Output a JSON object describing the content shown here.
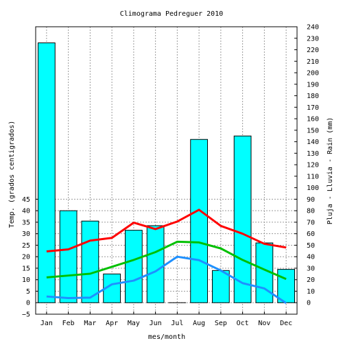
{
  "chart_data": {
    "type": "bar",
    "title": "Climograma Pedreguer 2010",
    "xlabel": "mes/month",
    "ylabel_left": "Temp. (grados centigrados)",
    "ylabel_right": "Pluja - Lluvia - Rain (mm)",
    "categories": [
      "Jan",
      "Feb",
      "Mar",
      "Apr",
      "May",
      "Jun",
      "Jul",
      "Aug",
      "Sep",
      "Oct",
      "Nov",
      "Dec"
    ],
    "left_axis": {
      "ticks": [
        -5,
        0,
        5,
        10,
        15,
        20,
        25,
        30,
        35,
        40,
        45
      ],
      "tick_labels": [
        "−5",
        "0",
        "5",
        "10",
        "15",
        "20",
        "25",
        "30",
        "35",
        "40",
        "45"
      ]
    },
    "right_axis": {
      "ylim": [
        -10,
        240
      ],
      "ticks": [
        0,
        10,
        20,
        30,
        40,
        50,
        60,
        70,
        80,
        90,
        100,
        110,
        120,
        130,
        140,
        150,
        160,
        170,
        180,
        190,
        200,
        210,
        220,
        230,
        240
      ]
    },
    "rain_bars": {
      "name": "",
      "axis": "right",
      "color": "#00ffff",
      "values": [
        226,
        80,
        71,
        25,
        63,
        67,
        0,
        142,
        28,
        145,
        52,
        29
      ]
    },
    "temperature_lines": [
      {
        "name": "",
        "color": "#ff0000",
        "axis": "left",
        "values": [
          22.3,
          23.2,
          27,
          28.2,
          34.8,
          32,
          35.3,
          40.4,
          33.4,
          30,
          25.6,
          24
        ]
      },
      {
        "name": "",
        "color": "#00c000",
        "axis": "left",
        "values": [
          11,
          11.8,
          12.6,
          15.6,
          18.6,
          22,
          26.5,
          26.2,
          23.6,
          18.6,
          14.4,
          10.3
        ]
      },
      {
        "name": "",
        "color": "#1e90ff",
        "axis": "left",
        "values": [
          2.7,
          2,
          2.2,
          8,
          9.6,
          13.6,
          20,
          18.5,
          14,
          8.5,
          6.2,
          -0.2
        ]
      }
    ],
    "grid": true
  }
}
